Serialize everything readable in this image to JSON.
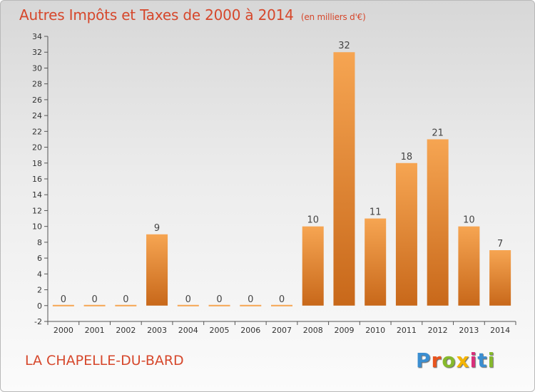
{
  "header": {
    "title": "Autres Impôts et Taxes de 2000 à 2014",
    "unit": "(en milliers d'€)"
  },
  "footer": {
    "commune": "LA CHAPELLE-DU-BARD",
    "logo_letters": [
      "P",
      "r",
      "o",
      "x",
      "i",
      "t",
      "i"
    ],
    "logo_colors": [
      "#3b8ed1",
      "#e8541e",
      "#86b92d",
      "#f4b400",
      "#d92f7a",
      "#3b8ed1",
      "#86b92d"
    ]
  },
  "colors": {
    "bar_top": "#f6a552",
    "bar_bottom": "#c8681a",
    "accent": "#d6472b"
  },
  "chart_data": {
    "type": "bar",
    "categories": [
      "2000",
      "2001",
      "2002",
      "2003",
      "2004",
      "2005",
      "2006",
      "2007",
      "2008",
      "2009",
      "2010",
      "2011",
      "2012",
      "2013",
      "2014"
    ],
    "values": [
      0,
      0,
      0,
      9,
      0,
      0,
      0,
      0,
      10,
      32,
      11,
      18,
      21,
      10,
      7
    ],
    "data_labels": [
      "0",
      "0",
      "0",
      "9",
      "0",
      "0",
      "0",
      "0",
      "10",
      "32",
      "11",
      "18",
      "21",
      "10",
      "7"
    ],
    "ylim": [
      -2,
      34
    ],
    "yticks": [
      -2,
      0,
      2,
      4,
      6,
      8,
      10,
      12,
      14,
      16,
      18,
      20,
      22,
      24,
      26,
      28,
      30,
      32,
      34
    ],
    "grid": false,
    "legend": "none"
  }
}
